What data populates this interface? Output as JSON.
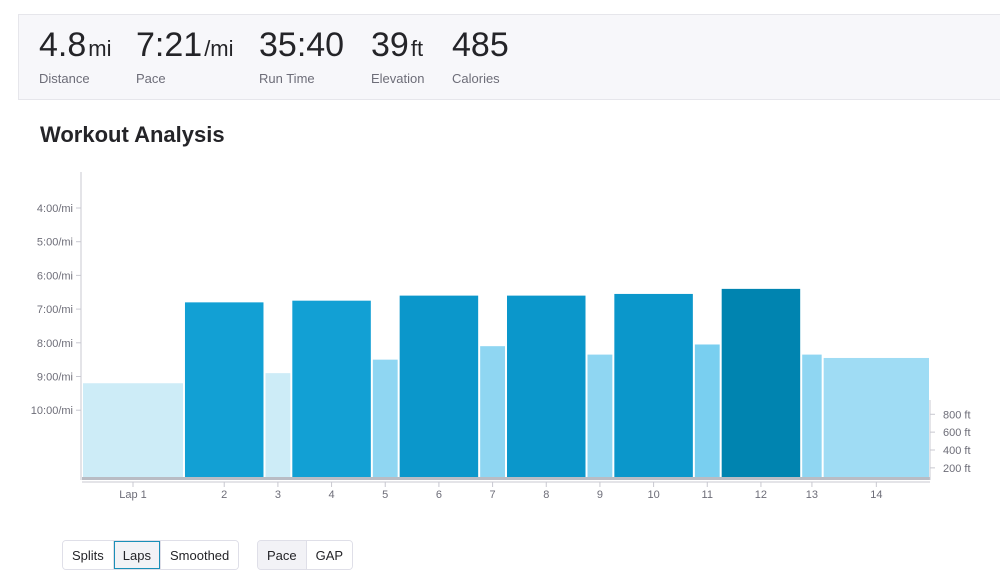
{
  "stats": [
    {
      "value": "4.8",
      "unit": "mi",
      "label": "Distance"
    },
    {
      "value": "7:21",
      "unit": "/mi",
      "label": "Pace"
    },
    {
      "value": "35:40",
      "unit": "",
      "label": "Run Time"
    },
    {
      "value": "39",
      "unit": "ft",
      "label": "Elevation"
    },
    {
      "value": "485",
      "unit": "",
      "label": "Calories"
    }
  ],
  "section_title": "Workout Analysis",
  "chart_data": {
    "type": "bar",
    "categories": [
      "Lap 1",
      "2",
      "3",
      "4",
      "5",
      "6",
      "7",
      "8",
      "9",
      "10",
      "11",
      "12",
      "13",
      "14"
    ],
    "series": [
      {
        "values": [
          9.2,
          6.8,
          8.9,
          6.75,
          8.5,
          6.6,
          8.1,
          6.6,
          8.35,
          6.55,
          8.05,
          6.4,
          8.35,
          8.45
        ]
      }
    ],
    "x_boundaries": [
      0,
      1.9,
      3.4,
      3.9,
      5.4,
      5.9,
      7.4,
      7.9,
      9.4,
      9.9,
      11.4,
      11.9,
      13.4,
      13.8,
      15.8
    ],
    "ylabel_ticks": [
      "4:00/mi",
      "5:00/mi",
      "6:00/mi",
      "7:00/mi",
      "8:00/mi",
      "9:00/mi",
      "10:00/mi"
    ],
    "ytick_values": [
      4,
      5,
      6,
      7,
      8,
      9,
      10
    ],
    "ylim": [
      3,
      12
    ],
    "y2_ticks": [
      "800 ft",
      "600 ft",
      "400 ft",
      "200 ft"
    ],
    "y2_tick_values": [
      800,
      600,
      400,
      200
    ],
    "y2lim": [
      120,
      960
    ],
    "colors": {
      "slow": "#d3eef8",
      "walk": "#8fd6f2",
      "medium": "#1aa3d6",
      "fast": "#0095c8",
      "fastest": "#0083ae"
    },
    "bar_colors": [
      "#cdecf7",
      "#12a0d4",
      "#cdecf7",
      "#12a0d4",
      "#8fd6f2",
      "#0b97cb",
      "#8fd6f2",
      "#0b97cb",
      "#8fd6f2",
      "#0b97cb",
      "#79cff0",
      "#0084b0",
      "#8fd6f2",
      "#9fdcf4"
    ]
  },
  "controls": {
    "view_options": [
      "Splits",
      "Laps",
      "Smoothed"
    ],
    "active_view": "Laps",
    "metric_options": [
      "Pace",
      "GAP"
    ],
    "active_metric": "Pace"
  }
}
